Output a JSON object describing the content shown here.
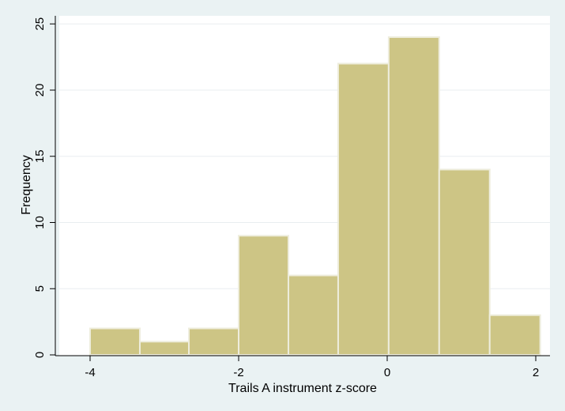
{
  "chart_data": {
    "type": "bar",
    "subtype": "histogram",
    "xlabel": "Trails A instrument z-score",
    "ylabel": "Frequency",
    "xlim": [
      -4.0,
      2.1
    ],
    "ylim": [
      0,
      25
    ],
    "x_ticks": [
      -4,
      -2,
      0,
      2
    ],
    "y_ticks": [
      0,
      5,
      10,
      15,
      20,
      25
    ],
    "bins": [
      {
        "x0": -4.0,
        "x1": -3.33,
        "value": 2
      },
      {
        "x0": -3.33,
        "x1": -2.67,
        "value": 1
      },
      {
        "x0": -2.67,
        "x1": -2.0,
        "value": 2
      },
      {
        "x0": -2.0,
        "x1": -1.33,
        "value": 9
      },
      {
        "x0": -1.33,
        "x1": -0.66,
        "value": 6
      },
      {
        "x0": -0.66,
        "x1": 0.02,
        "value": 22
      },
      {
        "x0": 0.02,
        "x1": 0.7,
        "value": 24
      },
      {
        "x0": 0.7,
        "x1": 1.38,
        "value": 14
      },
      {
        "x0": 1.38,
        "x1": 2.06,
        "value": 3
      }
    ],
    "grid": "horizontal",
    "colors": {
      "background": "#eaf2f3",
      "plot_background": "#ffffff",
      "bar_fill": "#cdc585",
      "bar_edge": "#eeeddd",
      "grid": "#e9eef0",
      "axis": "#000000"
    }
  }
}
